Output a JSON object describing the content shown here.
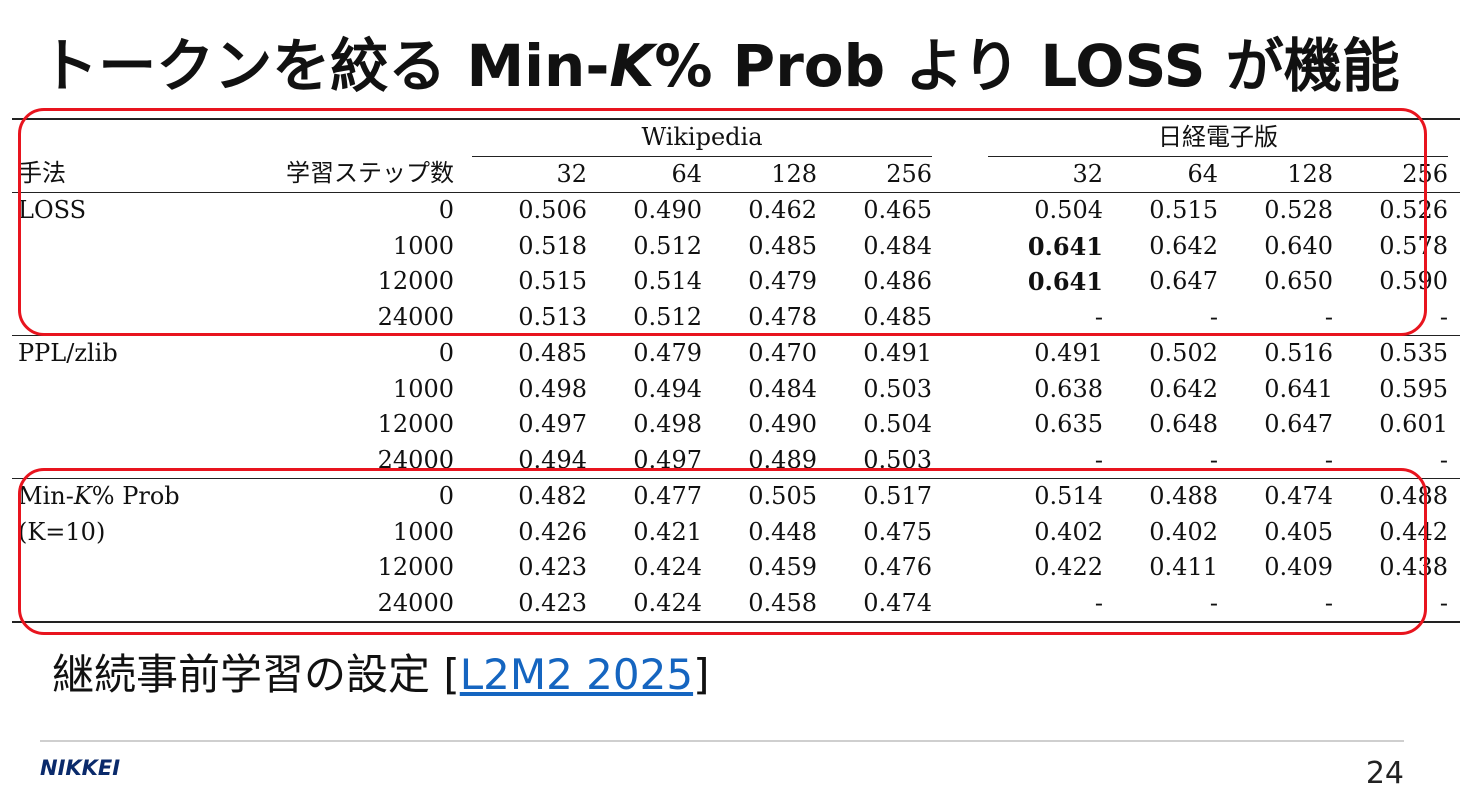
{
  "title": {
    "prefix": "トークンを絞る Min-",
    "k": "K",
    "suffix": "% Prob より LOSS が機能"
  },
  "table": {
    "method_header": "手法",
    "steps_header": "学習ステップ数",
    "group_wiki": "Wikipedia",
    "group_nikkei": "日経電子版",
    "sizes": [
      "32",
      "64",
      "128",
      "256"
    ],
    "groups": [
      {
        "method_lines": [
          {
            "pre": "LOSS",
            "it": "",
            "post": ""
          },
          {
            "pre": "",
            "it": "",
            "post": ""
          }
        ],
        "rows": [
          {
            "step": "0",
            "wiki": [
              "0.506",
              "0.490",
              "0.462",
              "0.465"
            ],
            "nikkei": [
              "0.504",
              "0.515",
              "0.528",
              "0.526"
            ]
          },
          {
            "step": "1000",
            "wiki": [
              "0.518",
              "0.512",
              "0.485",
              "0.484"
            ],
            "nikkei": [
              "0.641",
              "0.642",
              "0.640",
              "0.578"
            ]
          },
          {
            "step": "12000",
            "wiki": [
              "0.515",
              "0.514",
              "0.479",
              "0.486"
            ],
            "nikkei": [
              "0.641",
              "0.647",
              "0.650",
              "0.590"
            ]
          },
          {
            "step": "24000",
            "wiki": [
              "0.513",
              "0.512",
              "0.478",
              "0.485"
            ],
            "nikkei": [
              "-",
              "-",
              "-",
              "-"
            ]
          }
        ]
      },
      {
        "method_lines": [
          {
            "pre": "PPL/zlib",
            "it": "",
            "post": ""
          },
          {
            "pre": "",
            "it": "",
            "post": ""
          }
        ],
        "rows": [
          {
            "step": "0",
            "wiki": [
              "0.485",
              "0.479",
              "0.470",
              "0.491"
            ],
            "nikkei": [
              "0.491",
              "0.502",
              "0.516",
              "0.535"
            ]
          },
          {
            "step": "1000",
            "wiki": [
              "0.498",
              "0.494",
              "0.484",
              "0.503"
            ],
            "nikkei": [
              "0.638",
              "0.642",
              "0.641",
              "0.595"
            ]
          },
          {
            "step": "12000",
            "wiki": [
              "0.497",
              "0.498",
              "0.490",
              "0.504"
            ],
            "nikkei": [
              "0.635",
              "0.648",
              "0.647",
              "0.601"
            ]
          },
          {
            "step": "24000",
            "wiki": [
              "0.494",
              "0.497",
              "0.489",
              "0.503"
            ],
            "nikkei": [
              "-",
              "-",
              "-",
              "-"
            ]
          }
        ]
      },
      {
        "method_lines": [
          {
            "pre": "Min-",
            "it": "K",
            "post": "% Prob"
          },
          {
            "pre": "(K=10)",
            "it": "",
            "post": ""
          }
        ],
        "rows": [
          {
            "step": "0",
            "wiki": [
              "0.482",
              "0.477",
              "0.505",
              "0.517"
            ],
            "nikkei": [
              "0.514",
              "0.488",
              "0.474",
              "0.488"
            ]
          },
          {
            "step": "1000",
            "wiki": [
              "0.426",
              "0.421",
              "0.448",
              "0.475"
            ],
            "nikkei": [
              "0.402",
              "0.402",
              "0.405",
              "0.442"
            ]
          },
          {
            "step": "12000",
            "wiki": [
              "0.423",
              "0.424",
              "0.459",
              "0.476"
            ],
            "nikkei": [
              "0.422",
              "0.411",
              "0.409",
              "0.438"
            ]
          },
          {
            "step": "24000",
            "wiki": [
              "0.423",
              "0.424",
              "0.458",
              "0.474"
            ],
            "nikkei": [
              "-",
              "-",
              "-",
              "-"
            ]
          }
        ]
      }
    ]
  },
  "highlight_color": "#e8141e",
  "caption": {
    "text": "継続事前学習の設定 [",
    "link": "L2M2 2025",
    "close": "]"
  },
  "footer": {
    "logo": "NIKKEI",
    "page_number": "24"
  }
}
